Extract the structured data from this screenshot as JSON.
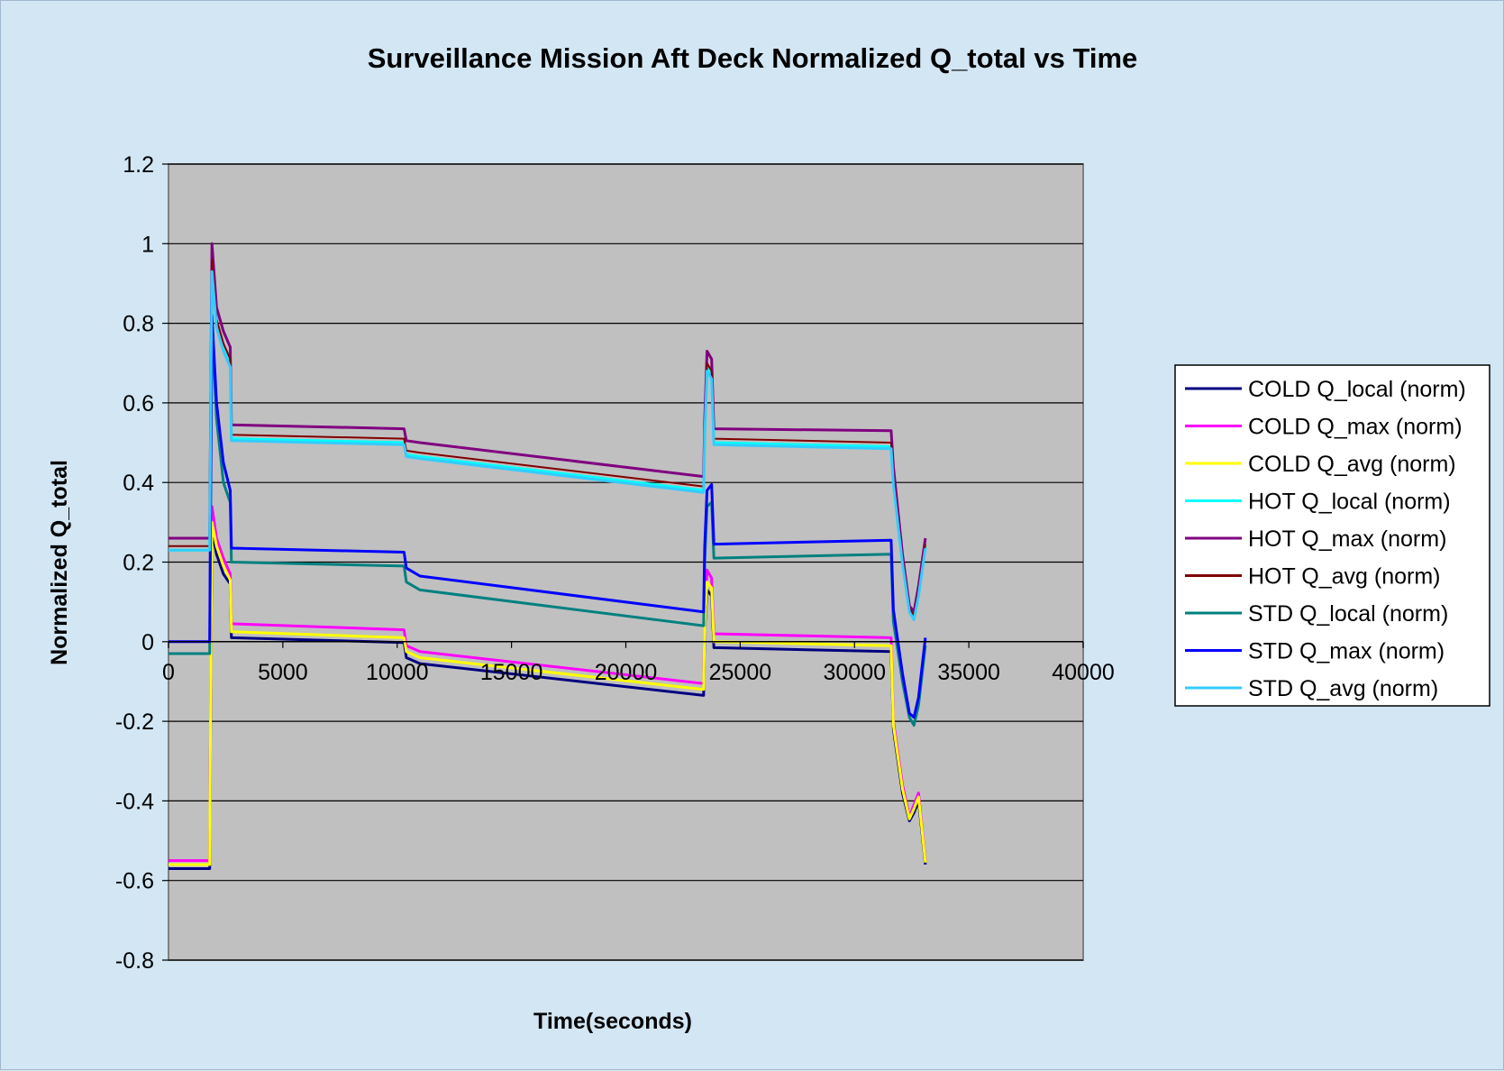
{
  "chart_data": {
    "type": "line",
    "title": "Surveillance Mission Aft Deck Normalized Q_total vs Time",
    "xlabel": "Time(seconds)",
    "ylabel": "Normalized Q_total",
    "xlim": [
      0,
      40000
    ],
    "ylim": [
      -0.8,
      1.2
    ],
    "xticks": [
      0,
      5000,
      10000,
      15000,
      20000,
      25000,
      30000,
      35000,
      40000
    ],
    "yticks": [
      -0.8,
      -0.6,
      -0.4,
      -0.2,
      0,
      0.2,
      0.4,
      0.6,
      0.8,
      1,
      1.2
    ],
    "grid": "horizontal",
    "legend_position": "right",
    "plot_background": "#c0c0c0",
    "series": [
      {
        "name": "COLD Q_local (norm)",
        "color": "#000080",
        "x": [
          0,
          1800,
          1850,
          1900,
          2100,
          2400,
          2700,
          2750,
          10300,
          10400,
          11000,
          23400,
          23450,
          23550,
          23750,
          23850,
          31600,
          31700,
          32100,
          32400,
          32600,
          32800,
          33100
        ],
        "y": [
          -0.57,
          -0.57,
          -0.1,
          0.28,
          0.22,
          0.17,
          0.145,
          0.01,
          -0.002,
          -0.04,
          -0.055,
          -0.135,
          0.03,
          0.13,
          0.115,
          -0.015,
          -0.025,
          -0.22,
          -0.38,
          -0.45,
          -0.43,
          -0.4,
          -0.56
        ]
      },
      {
        "name": "COLD Q_max (norm)",
        "color": "#ff00ff",
        "x": [
          0,
          1800,
          1850,
          1900,
          2100,
          2400,
          2700,
          2750,
          10300,
          10400,
          11000,
          23400,
          23450,
          23550,
          23750,
          23850,
          31600,
          31700,
          32100,
          32400,
          32600,
          32800,
          33100
        ],
        "y": [
          -0.55,
          -0.55,
          -0.05,
          0.34,
          0.26,
          0.21,
          0.17,
          0.045,
          0.03,
          -0.01,
          -0.025,
          -0.105,
          0.05,
          0.18,
          0.16,
          0.02,
          0.01,
          -0.2,
          -0.36,
          -0.44,
          -0.41,
          -0.38,
          -0.55
        ]
      },
      {
        "name": "COLD Q_avg (norm)",
        "color": "#ffff00",
        "x": [
          0,
          1800,
          1850,
          1900,
          2100,
          2400,
          2700,
          2750,
          10300,
          10400,
          11000,
          23400,
          23450,
          23550,
          23750,
          23850,
          31600,
          31700,
          32100,
          32400,
          32600,
          32800,
          33100
        ],
        "y": [
          -0.56,
          -0.56,
          -0.08,
          0.3,
          0.24,
          0.19,
          0.155,
          0.025,
          0.01,
          -0.025,
          -0.04,
          -0.12,
          0.04,
          0.15,
          0.135,
          0.0,
          -0.01,
          -0.21,
          -0.37,
          -0.445,
          -0.42,
          -0.39,
          -0.555
        ]
      },
      {
        "name": "HOT Q_local (norm)",
        "color": "#00ffff",
        "x": [
          0,
          1800,
          1850,
          1900,
          2100,
          2400,
          2700,
          2750,
          10300,
          10400,
          11000,
          23400,
          23450,
          23550,
          23750,
          23850,
          31600,
          31700,
          32100,
          32400,
          32600,
          32800,
          33100
        ],
        "y": [
          0.23,
          0.23,
          0.6,
          0.95,
          0.8,
          0.74,
          0.7,
          0.51,
          0.5,
          0.47,
          0.465,
          0.38,
          0.52,
          0.69,
          0.67,
          0.5,
          0.49,
          0.4,
          0.2,
          0.08,
          0.06,
          0.12,
          0.24
        ]
      },
      {
        "name": "HOT Q_max (norm)",
        "color": "#800080",
        "x": [
          0,
          1800,
          1850,
          1900,
          2100,
          2400,
          2700,
          2750,
          10300,
          10400,
          11000,
          23400,
          23450,
          23550,
          23750,
          23850,
          31600,
          31700,
          32100,
          32400,
          32600,
          32800,
          33100
        ],
        "y": [
          0.26,
          0.26,
          0.63,
          1.0,
          0.84,
          0.78,
          0.74,
          0.545,
          0.535,
          0.505,
          0.5,
          0.415,
          0.56,
          0.73,
          0.71,
          0.535,
          0.53,
          0.44,
          0.22,
          0.09,
          0.075,
          0.14,
          0.26
        ]
      },
      {
        "name": "HOT Q_avg (norm)",
        "color": "#800000",
        "x": [
          0,
          1800,
          1850,
          1900,
          2100,
          2400,
          2700,
          2750,
          10300,
          10400,
          11000,
          23400,
          23450,
          23550,
          23750,
          23850,
          31600,
          31700,
          32100,
          32400,
          32600,
          32800,
          33100
        ],
        "y": [
          0.24,
          0.24,
          0.61,
          0.96,
          0.81,
          0.75,
          0.71,
          0.52,
          0.51,
          0.48,
          0.475,
          0.39,
          0.53,
          0.7,
          0.68,
          0.51,
          0.5,
          0.41,
          0.205,
          0.085,
          0.065,
          0.125,
          0.245
        ]
      },
      {
        "name": "STD Q_local (norm)",
        "color": "#008080",
        "x": [
          0,
          1800,
          1850,
          1900,
          2100,
          2400,
          2700,
          2750,
          10300,
          10400,
          11000,
          23400,
          23450,
          23550,
          23750,
          23850,
          31600,
          31700,
          32100,
          32400,
          32600,
          32800,
          33100
        ],
        "y": [
          -0.03,
          -0.03,
          0.4,
          0.8,
          0.56,
          0.4,
          0.35,
          0.2,
          0.19,
          0.15,
          0.13,
          0.04,
          0.2,
          0.34,
          0.35,
          0.21,
          0.22,
          0.05,
          -0.1,
          -0.19,
          -0.21,
          -0.16,
          -0.01
        ]
      },
      {
        "name": "STD Q_max (norm)",
        "color": "#0000ff",
        "x": [
          0,
          1800,
          1850,
          1900,
          2100,
          2400,
          2700,
          2750,
          10300,
          10400,
          11000,
          23400,
          23450,
          23550,
          23750,
          23850,
          31600,
          31700,
          32100,
          32400,
          32600,
          32800,
          33100
        ],
        "y": [
          0.0,
          0.0,
          0.43,
          0.82,
          0.6,
          0.45,
          0.38,
          0.235,
          0.225,
          0.185,
          0.165,
          0.075,
          0.24,
          0.38,
          0.395,
          0.245,
          0.255,
          0.08,
          -0.08,
          -0.18,
          -0.19,
          -0.14,
          0.01
        ]
      },
      {
        "name": "STD Q_avg (norm)",
        "color": "#33ccff",
        "x": [
          0,
          1800,
          1850,
          1900,
          2100,
          2400,
          2700,
          2750,
          10300,
          10400,
          11000,
          23400,
          23450,
          23550,
          23750,
          23850,
          31600,
          31700,
          32100,
          32400,
          32600,
          32800,
          33100
        ],
        "y": [
          0.23,
          0.23,
          0.6,
          0.93,
          0.79,
          0.73,
          0.69,
          0.505,
          0.495,
          0.465,
          0.46,
          0.375,
          0.515,
          0.68,
          0.66,
          0.495,
          0.485,
          0.395,
          0.195,
          0.075,
          0.055,
          0.115,
          0.235
        ]
      }
    ]
  }
}
